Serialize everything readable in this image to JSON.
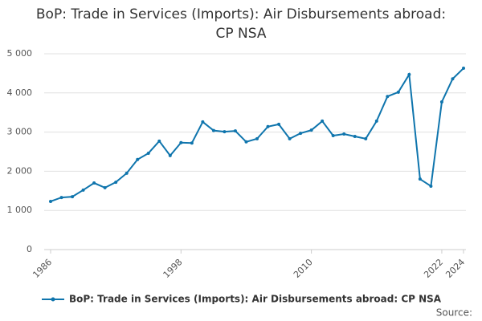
{
  "chart_data": {
    "type": "line",
    "title": "BoP: Trade in Services (Imports): Air Disbursements abroad: CP NSA",
    "x": [
      1986,
      1987,
      1988,
      1989,
      1990,
      1991,
      1992,
      1993,
      1994,
      1995,
      1996,
      1997,
      1998,
      1999,
      2000,
      2001,
      2002,
      2003,
      2004,
      2005,
      2006,
      2007,
      2008,
      2009,
      2010,
      2011,
      2012,
      2013,
      2014,
      2015,
      2016,
      2017,
      2018,
      2019,
      2020,
      2021,
      2022,
      2023,
      2024
    ],
    "series": [
      {
        "name": "BoP: Trade in Services (Imports): Air Disbursements abroad: CP NSA",
        "color": "#0f75ad",
        "values": [
          1230,
          1330,
          1350,
          1520,
          1700,
          1580,
          1720,
          1950,
          2300,
          2460,
          2770,
          2400,
          2730,
          2720,
          3260,
          3040,
          3010,
          3030,
          2750,
          2830,
          3140,
          3200,
          2830,
          2970,
          3050,
          3280,
          2910,
          2950,
          2890,
          2830,
          3280,
          3910,
          4020,
          4470,
          1800,
          1620,
          3770,
          4360,
          4630
        ]
      }
    ],
    "xlim": [
      1986,
      2024
    ],
    "xticks": [
      1986,
      1998,
      2010,
      2022,
      2024
    ],
    "ylim": [
      0,
      5000
    ],
    "yticks": [
      0,
      {
        "value": 1000,
        "label": "1 000"
      },
      {
        "value": 2000,
        "label": "2 000"
      },
      {
        "value": 3000,
        "label": "3 000"
      },
      {
        "value": 4000,
        "label": "4 000"
      },
      {
        "value": 5000,
        "label": "5 000"
      }
    ],
    "grid": true,
    "source": "Source:"
  }
}
